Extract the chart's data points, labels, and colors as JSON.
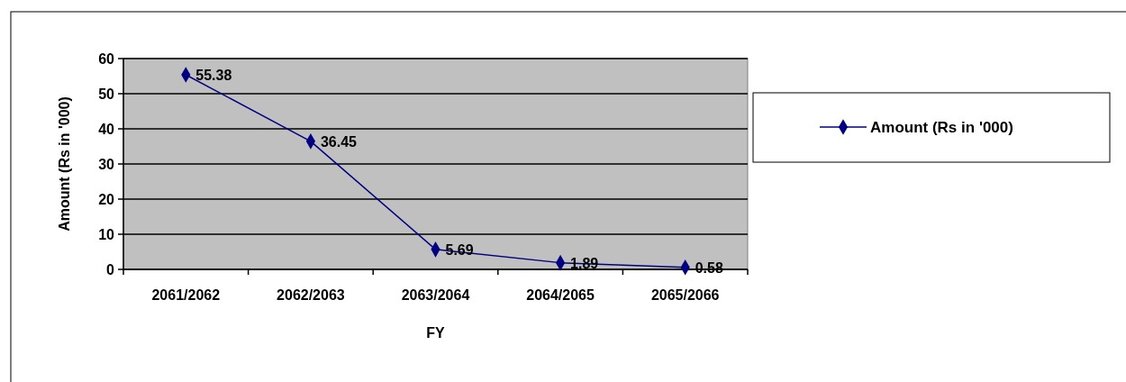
{
  "chart_data": {
    "type": "line",
    "xlabel": "FY",
    "ylabel": "Amount (Rs in '000)",
    "categories": [
      "2061/2062",
      "2062/2063",
      "2063/2064",
      "2064/2065",
      "2065/2066"
    ],
    "series": [
      {
        "name": "Amount (Rs in '000)",
        "color": "#000080",
        "values": [
          55.38,
          36.45,
          5.69,
          1.89,
          0.58
        ]
      }
    ],
    "ylim": [
      0,
      60
    ],
    "yticks": [
      0,
      10,
      20,
      30,
      40,
      50,
      60
    ],
    "grid": "y",
    "legend": "right",
    "marker": "diamond",
    "data_labels": true
  }
}
